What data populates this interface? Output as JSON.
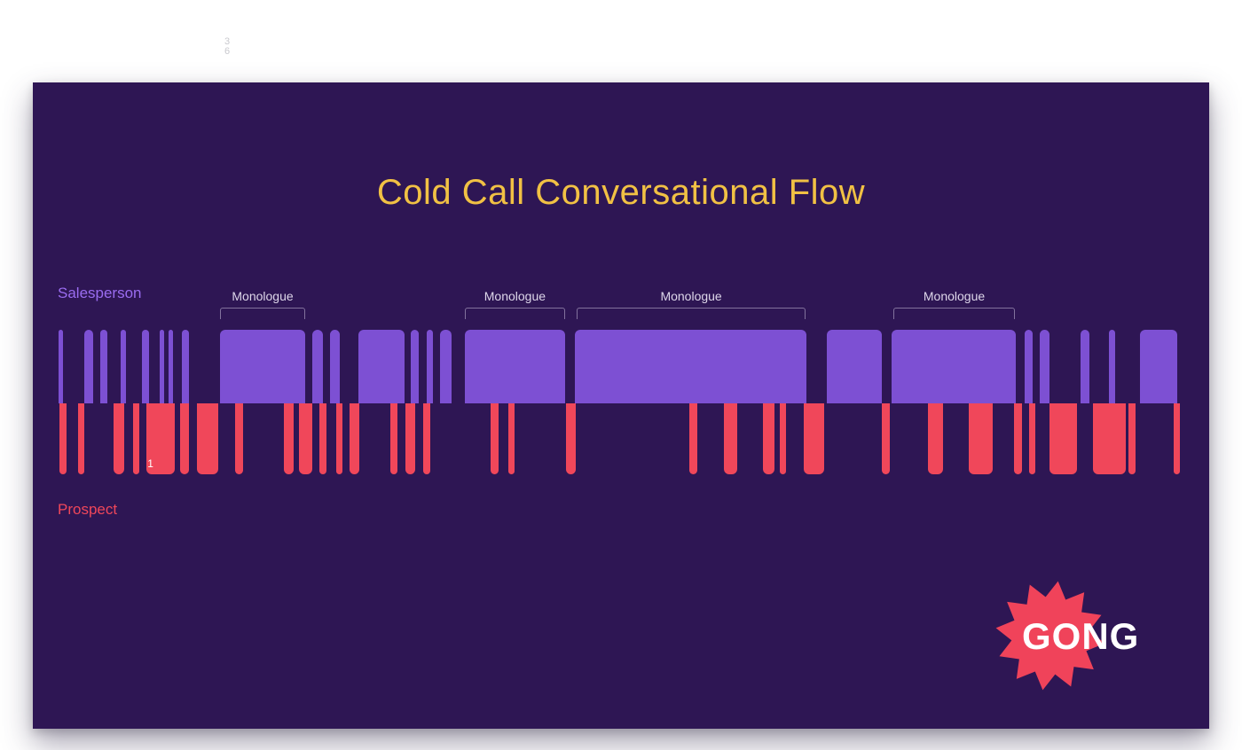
{
  "page": {
    "markers": {
      "top": "3",
      "bottom": "6"
    }
  },
  "slide": {
    "title": "Cold Call Conversational Flow",
    "labels": {
      "salesperson": "Salesperson",
      "prospect": "Prospect"
    },
    "marker": "1",
    "logo_text": "GONG",
    "colors": {
      "slide_bg": "#2e1654",
      "title": "#f1c144",
      "salesperson": "#7d50d3",
      "prospect": "#f0475a",
      "logo_burst": "#f0435a",
      "logo_text": "#ffffff"
    }
  },
  "chart_data": {
    "type": "timeline",
    "title": "Cold Call Conversational Flow",
    "x_unit": "percent_of_call_duration",
    "tracks": [
      {
        "name": "Salesperson",
        "side": "top",
        "color": "#7d50d3"
      },
      {
        "name": "Prospect",
        "side": "bottom",
        "color": "#f0475a"
      }
    ],
    "salesperson_segments": [
      [
        0.08,
        0.4
      ],
      [
        2.37,
        0.79
      ],
      [
        3.79,
        0.63
      ],
      [
        5.61,
        0.47
      ],
      [
        7.51,
        0.63
      ],
      [
        9.09,
        0.4
      ],
      [
        9.88,
        0.4
      ],
      [
        11.07,
        0.63
      ],
      [
        14.47,
        7.59
      ],
      [
        22.69,
        0.95
      ],
      [
        24.27,
        0.87
      ],
      [
        26.8,
        4.11
      ],
      [
        31.46,
        0.71
      ],
      [
        32.89,
        0.55
      ],
      [
        34.07,
        1.03
      ],
      [
        36.28,
        8.93
      ],
      [
        46.09,
        20.63
      ],
      [
        68.54,
        4.9
      ],
      [
        74.31,
        11.07
      ],
      [
        86.17,
        0.71
      ],
      [
        87.51,
        0.87
      ],
      [
        91.15,
        0.79
      ],
      [
        93.68,
        0.55
      ],
      [
        96.44,
        3.32
      ]
    ],
    "prospect_segments": [
      [
        0.16,
        0.63
      ],
      [
        1.82,
        0.55
      ],
      [
        4.98,
        0.95
      ],
      [
        6.72,
        0.55
      ],
      [
        7.91,
        2.53
      ],
      [
        10.91,
        0.79
      ],
      [
        12.41,
        1.9
      ],
      [
        15.81,
        0.71
      ],
      [
        20.16,
        0.87
      ],
      [
        21.5,
        1.19
      ],
      [
        23.32,
        0.63
      ],
      [
        24.82,
        0.55
      ],
      [
        26.01,
        0.87
      ],
      [
        29.64,
        0.63
      ],
      [
        30.99,
        0.87
      ],
      [
        32.57,
        0.63
      ],
      [
        38.58,
        0.71
      ],
      [
        40.16,
        0.55
      ],
      [
        45.3,
        0.87
      ],
      [
        56.28,
        0.71
      ],
      [
        59.37,
        1.19
      ],
      [
        62.85,
        1.03
      ],
      [
        64.35,
        0.55
      ],
      [
        66.48,
        1.82
      ],
      [
        73.44,
        0.71
      ],
      [
        77.55,
        1.34
      ],
      [
        81.19,
        2.13
      ],
      [
        85.22,
        0.71
      ],
      [
        86.56,
        0.55
      ],
      [
        88.38,
        2.45
      ],
      [
        92.25,
        2.92
      ],
      [
        95.42,
        0.63
      ],
      [
        99.45,
        0.55
      ]
    ],
    "monologues": [
      {
        "label": "Monologue",
        "x": 14.47,
        "w": 7.59
      },
      {
        "label": "Monologue",
        "x": 36.28,
        "w": 8.93
      },
      {
        "label": "Monologue",
        "x": 46.25,
        "w": 20.4
      },
      {
        "label": "Monologue",
        "x": 74.47,
        "w": 10.83
      }
    ]
  }
}
